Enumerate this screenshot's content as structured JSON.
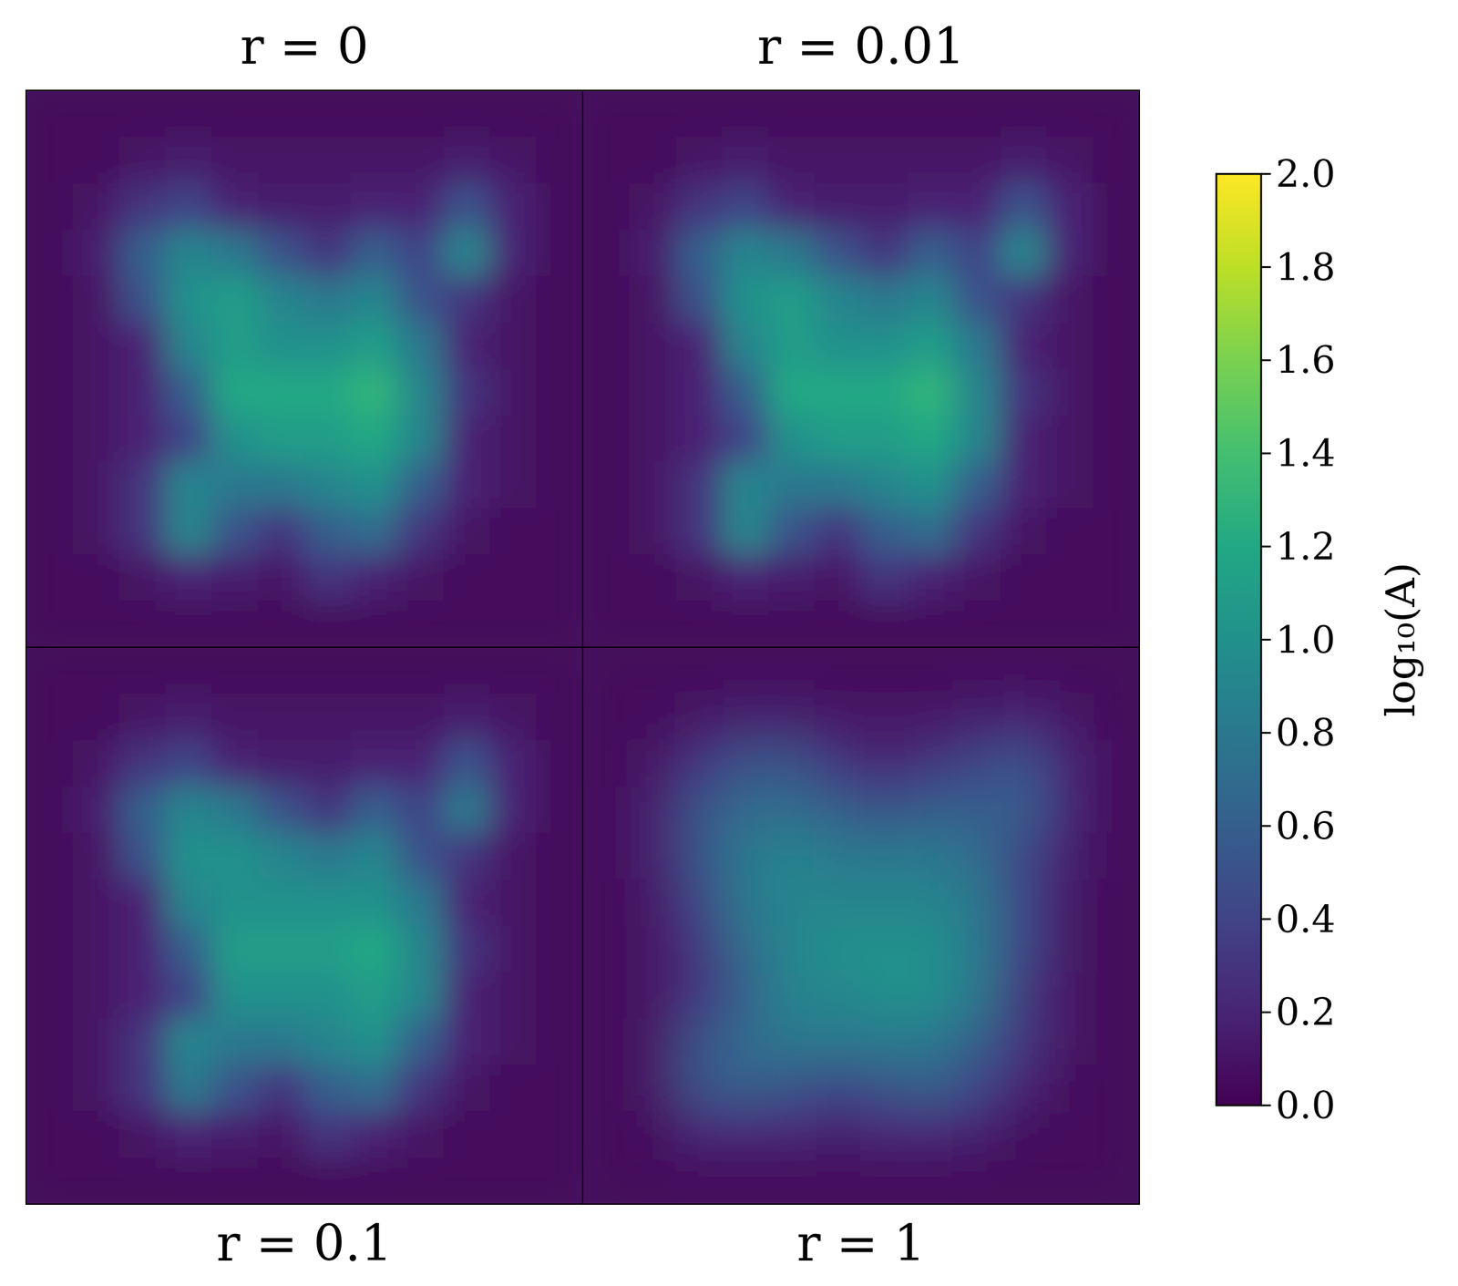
{
  "chart_data": {
    "type": "heatmap",
    "tick_labels": false,
    "colorbar": {
      "label": "log₁₀(A)",
      "range": [
        0,
        2
      ],
      "ticks": [
        {
          "value": 0,
          "label": "0.0"
        },
        0.2,
        0.4,
        0.6,
        0.8,
        {
          "value": 1,
          "label": "1.0"
        },
        1.2,
        1.4,
        1.6,
        1.8,
        {
          "value": 2,
          "label": "2.0"
        }
      ]
    },
    "panels": [
      {
        "title": "r = 0",
        "cells": [
          [
            0.05,
            0.05,
            0.05,
            0.05,
            0.05,
            0.05,
            0.05,
            0.05,
            0.05,
            0.05,
            0.05,
            0.05
          ],
          [
            0.05,
            0.05,
            0.1,
            0.15,
            0.1,
            0.1,
            0.1,
            0.1,
            0.1,
            0.15,
            0.1,
            0.05
          ],
          [
            0.05,
            0.1,
            0.3,
            0.4,
            0.2,
            0.15,
            0.15,
            0.2,
            0.2,
            0.5,
            0.2,
            0.05
          ],
          [
            0.05,
            0.15,
            0.6,
            0.9,
            0.8,
            0.5,
            0.3,
            0.6,
            0.4,
            0.9,
            0.2,
            0.05
          ],
          [
            0.05,
            0.1,
            0.5,
            1.0,
            1.1,
            0.9,
            0.8,
            0.9,
            0.5,
            0.3,
            0.1,
            0.05
          ],
          [
            0.05,
            0.1,
            0.2,
            0.9,
            1.1,
            1.0,
            1.0,
            1.1,
            0.8,
            0.2,
            0.1,
            0.05
          ],
          [
            0.05,
            0.1,
            0.2,
            0.6,
            1.2,
            1.2,
            1.2,
            1.3,
            0.9,
            0.3,
            0.1,
            0.05
          ],
          [
            0.05,
            0.1,
            0.2,
            0.4,
            1.0,
            1.1,
            1.1,
            1.2,
            0.9,
            0.2,
            0.1,
            0.05
          ],
          [
            0.05,
            0.1,
            0.3,
            0.9,
            0.8,
            0.8,
            0.9,
            1.0,
            0.6,
            0.2,
            0.1,
            0.05
          ],
          [
            0.05,
            0.1,
            0.3,
            0.9,
            0.5,
            0.3,
            0.6,
            0.7,
            0.3,
            0.1,
            0.05,
            0.05
          ],
          [
            0.05,
            0.05,
            0.1,
            0.2,
            0.15,
            0.1,
            0.3,
            0.2,
            0.1,
            0.05,
            0.05,
            0.05
          ],
          [
            0.05,
            0.05,
            0.05,
            0.05,
            0.05,
            0.05,
            0.05,
            0.05,
            0.05,
            0.05,
            0.05,
            0.05
          ]
        ]
      },
      {
        "title": "r = 0.01",
        "cells": [
          [
            0.05,
            0.05,
            0.05,
            0.05,
            0.05,
            0.05,
            0.05,
            0.05,
            0.05,
            0.05,
            0.05,
            0.05
          ],
          [
            0.05,
            0.05,
            0.1,
            0.15,
            0.1,
            0.1,
            0.1,
            0.1,
            0.1,
            0.15,
            0.1,
            0.05
          ],
          [
            0.05,
            0.1,
            0.3,
            0.4,
            0.2,
            0.15,
            0.15,
            0.2,
            0.2,
            0.5,
            0.2,
            0.05
          ],
          [
            0.05,
            0.15,
            0.6,
            0.9,
            0.8,
            0.5,
            0.3,
            0.6,
            0.4,
            0.9,
            0.2,
            0.05
          ],
          [
            0.05,
            0.1,
            0.5,
            1.0,
            1.1,
            0.9,
            0.8,
            0.9,
            0.5,
            0.3,
            0.1,
            0.05
          ],
          [
            0.05,
            0.1,
            0.2,
            0.9,
            1.1,
            1.0,
            1.0,
            1.1,
            0.8,
            0.2,
            0.1,
            0.05
          ],
          [
            0.05,
            0.1,
            0.2,
            0.6,
            1.2,
            1.2,
            1.2,
            1.3,
            0.9,
            0.3,
            0.1,
            0.05
          ],
          [
            0.05,
            0.1,
            0.2,
            0.4,
            1.0,
            1.1,
            1.1,
            1.2,
            0.9,
            0.2,
            0.1,
            0.05
          ],
          [
            0.05,
            0.1,
            0.3,
            0.9,
            0.8,
            0.8,
            0.9,
            1.0,
            0.6,
            0.2,
            0.1,
            0.05
          ],
          [
            0.05,
            0.1,
            0.3,
            0.9,
            0.5,
            0.3,
            0.6,
            0.7,
            0.3,
            0.1,
            0.05,
            0.05
          ],
          [
            0.05,
            0.05,
            0.1,
            0.2,
            0.15,
            0.1,
            0.3,
            0.2,
            0.1,
            0.05,
            0.05,
            0.05
          ],
          [
            0.05,
            0.05,
            0.05,
            0.05,
            0.05,
            0.05,
            0.05,
            0.05,
            0.05,
            0.05,
            0.05,
            0.05
          ]
        ]
      },
      {
        "title": "r = 0.1",
        "cells": [
          [
            0.05,
            0.05,
            0.05,
            0.05,
            0.05,
            0.05,
            0.05,
            0.05,
            0.05,
            0.05,
            0.05,
            0.05
          ],
          [
            0.05,
            0.05,
            0.1,
            0.15,
            0.1,
            0.1,
            0.1,
            0.1,
            0.1,
            0.15,
            0.1,
            0.05
          ],
          [
            0.05,
            0.1,
            0.3,
            0.4,
            0.2,
            0.15,
            0.15,
            0.2,
            0.2,
            0.5,
            0.2,
            0.05
          ],
          [
            0.05,
            0.15,
            0.6,
            0.9,
            0.8,
            0.5,
            0.3,
            0.6,
            0.4,
            0.8,
            0.2,
            0.05
          ],
          [
            0.05,
            0.1,
            0.5,
            1.0,
            1.0,
            0.9,
            0.8,
            0.9,
            0.5,
            0.3,
            0.1,
            0.05
          ],
          [
            0.05,
            0.1,
            0.2,
            0.9,
            1.0,
            1.0,
            1.0,
            1.0,
            0.8,
            0.2,
            0.1,
            0.05
          ],
          [
            0.05,
            0.1,
            0.2,
            0.6,
            1.1,
            1.1,
            1.1,
            1.2,
            0.9,
            0.3,
            0.1,
            0.05
          ],
          [
            0.05,
            0.1,
            0.2,
            0.4,
            1.0,
            1.0,
            1.0,
            1.1,
            0.9,
            0.2,
            0.1,
            0.05
          ],
          [
            0.05,
            0.1,
            0.3,
            0.9,
            0.8,
            0.8,
            0.9,
            1.0,
            0.6,
            0.2,
            0.1,
            0.05
          ],
          [
            0.05,
            0.1,
            0.3,
            0.8,
            0.5,
            0.3,
            0.6,
            0.7,
            0.3,
            0.1,
            0.05,
            0.05
          ],
          [
            0.05,
            0.05,
            0.1,
            0.2,
            0.15,
            0.1,
            0.3,
            0.2,
            0.1,
            0.05,
            0.05,
            0.05
          ],
          [
            0.05,
            0.05,
            0.05,
            0.05,
            0.05,
            0.05,
            0.05,
            0.05,
            0.05,
            0.05,
            0.05,
            0.05
          ]
        ]
      },
      {
        "title": "r = 1",
        "cells": [
          [
            0.05,
            0.05,
            0.05,
            0.05,
            0.05,
            0.05,
            0.05,
            0.05,
            0.05,
            0.05,
            0.05,
            0.05
          ],
          [
            0.05,
            0.05,
            0.1,
            0.15,
            0.15,
            0.1,
            0.1,
            0.1,
            0.15,
            0.2,
            0.1,
            0.05
          ],
          [
            0.05,
            0.1,
            0.3,
            0.5,
            0.5,
            0.3,
            0.2,
            0.3,
            0.4,
            0.5,
            0.2,
            0.05
          ],
          [
            0.05,
            0.15,
            0.5,
            0.7,
            0.7,
            0.6,
            0.5,
            0.6,
            0.6,
            0.6,
            0.2,
            0.05
          ],
          [
            0.05,
            0.15,
            0.5,
            0.8,
            0.9,
            0.8,
            0.8,
            0.8,
            0.7,
            0.4,
            0.15,
            0.05
          ],
          [
            0.05,
            0.1,
            0.4,
            0.8,
            0.9,
            0.9,
            0.9,
            0.9,
            0.8,
            0.4,
            0.1,
            0.05
          ],
          [
            0.05,
            0.1,
            0.3,
            0.7,
            0.9,
            1.0,
            1.0,
            1.0,
            0.8,
            0.4,
            0.1,
            0.05
          ],
          [
            0.05,
            0.1,
            0.3,
            0.6,
            0.9,
            0.9,
            1.0,
            1.0,
            0.8,
            0.3,
            0.1,
            0.05
          ],
          [
            0.05,
            0.1,
            0.5,
            0.7,
            0.8,
            0.8,
            0.8,
            0.8,
            0.6,
            0.3,
            0.1,
            0.05
          ],
          [
            0.05,
            0.1,
            0.5,
            0.6,
            0.5,
            0.4,
            0.5,
            0.6,
            0.4,
            0.2,
            0.05,
            0.05
          ],
          [
            0.05,
            0.05,
            0.2,
            0.2,
            0.2,
            0.15,
            0.2,
            0.2,
            0.15,
            0.05,
            0.05,
            0.05
          ],
          [
            0.05,
            0.05,
            0.05,
            0.05,
            0.05,
            0.05,
            0.05,
            0.05,
            0.05,
            0.05,
            0.05,
            0.05
          ]
        ]
      }
    ]
  }
}
